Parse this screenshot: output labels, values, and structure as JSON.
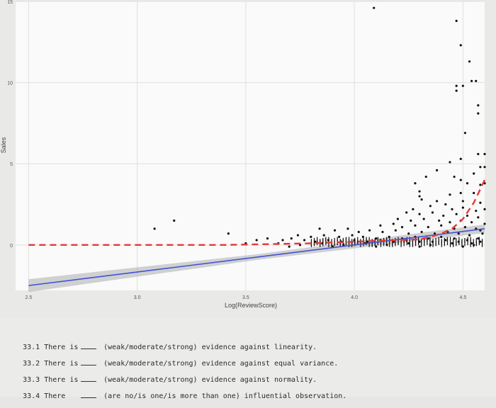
{
  "chart_data": {
    "type": "scatter",
    "title": "",
    "xlabel": "Log(ReviewScore)",
    "ylabel": "Sales",
    "xlim": [
      2.44,
      4.6
    ],
    "ylim": [
      -2.8,
      15
    ],
    "xticks": [
      2.5,
      3.0,
      3.5,
      4.0,
      4.5
    ],
    "xtick_labels": [
      "2.5",
      "3.0",
      "3.5",
      "4.0",
      "4.5"
    ],
    "yticks": [
      0,
      5,
      10,
      15
    ],
    "ytick_labels": [
      "0",
      "5",
      "10",
      "15"
    ],
    "grid": true,
    "points": [
      [
        4.09,
        14.6
      ],
      [
        4.47,
        13.8
      ],
      [
        4.49,
        12.3
      ],
      [
        4.53,
        11.3
      ],
      [
        4.54,
        10.1
      ],
      [
        4.56,
        10.1
      ],
      [
        4.47,
        9.8
      ],
      [
        4.47,
        9.5
      ],
      [
        4.5,
        9.8
      ],
      [
        4.57,
        8.6
      ],
      [
        4.57,
        8.1
      ],
      [
        4.51,
        6.9
      ],
      [
        4.57,
        5.6
      ],
      [
        4.6,
        5.6
      ],
      [
        4.49,
        5.3
      ],
      [
        4.44,
        5.1
      ],
      [
        4.38,
        4.6
      ],
      [
        4.58,
        4.8
      ],
      [
        4.6,
        4.8
      ],
      [
        4.55,
        4.4
      ],
      [
        4.46,
        4.2
      ],
      [
        4.49,
        4.0
      ],
      [
        4.52,
        3.8
      ],
      [
        4.58,
        3.7
      ],
      [
        4.6,
        3.8
      ],
      [
        4.33,
        4.2
      ],
      [
        4.28,
        3.8
      ],
      [
        4.3,
        3.3
      ],
      [
        4.3,
        3.0
      ],
      [
        4.31,
        2.8
      ],
      [
        4.44,
        3.1
      ],
      [
        4.49,
        3.2
      ],
      [
        4.55,
        3.2
      ],
      [
        4.38,
        2.7
      ],
      [
        4.42,
        2.5
      ],
      [
        4.5,
        2.7
      ],
      [
        4.58,
        2.6
      ],
      [
        4.27,
        2.2
      ],
      [
        4.35,
        2.4
      ],
      [
        4.45,
        2.2
      ],
      [
        4.5,
        2.3
      ],
      [
        4.56,
        2.1
      ],
      [
        4.6,
        2.2
      ],
      [
        4.24,
        2.0
      ],
      [
        4.3,
        1.9
      ],
      [
        4.36,
        2.0
      ],
      [
        4.41,
        1.8
      ],
      [
        4.47,
        1.9
      ],
      [
        4.52,
        1.8
      ],
      [
        4.57,
        1.7
      ],
      [
        4.2,
        1.6
      ],
      [
        4.26,
        1.5
      ],
      [
        4.32,
        1.6
      ],
      [
        4.39,
        1.5
      ],
      [
        4.44,
        1.4
      ],
      [
        4.49,
        1.5
      ],
      [
        4.54,
        1.4
      ],
      [
        4.6,
        1.3
      ],
      [
        4.12,
        1.2
      ],
      [
        4.18,
        1.3
      ],
      [
        4.22,
        1.1
      ],
      [
        4.28,
        1.2
      ],
      [
        4.34,
        1.1
      ],
      [
        4.4,
        1.2
      ],
      [
        4.46,
        1.0
      ],
      [
        4.51,
        1.1
      ],
      [
        4.56,
        1.0
      ],
      [
        4.58,
        0.9
      ],
      [
        3.84,
        1.0
      ],
      [
        3.91,
        0.9
      ],
      [
        3.97,
        1.0
      ],
      [
        4.02,
        0.8
      ],
      [
        4.07,
        0.9
      ],
      [
        4.13,
        0.8
      ],
      [
        4.19,
        0.9
      ],
      [
        4.25,
        0.7
      ],
      [
        4.31,
        0.8
      ],
      [
        4.37,
        0.7
      ],
      [
        4.43,
        0.8
      ],
      [
        4.48,
        0.7
      ],
      [
        4.53,
        0.6
      ],
      [
        4.59,
        0.7
      ],
      [
        3.74,
        0.6
      ],
      [
        3.8,
        0.5
      ],
      [
        3.86,
        0.6
      ],
      [
        3.93,
        0.5
      ],
      [
        3.99,
        0.6
      ],
      [
        4.04,
        0.5
      ],
      [
        4.1,
        0.4
      ],
      [
        4.16,
        0.5
      ],
      [
        4.22,
        0.4
      ],
      [
        4.28,
        0.5
      ],
      [
        4.34,
        0.4
      ],
      [
        4.4,
        0.5
      ],
      [
        4.46,
        0.4
      ],
      [
        4.52,
        0.3
      ],
      [
        4.57,
        0.4
      ],
      [
        3.08,
        1.0
      ],
      [
        3.17,
        1.5
      ],
      [
        3.42,
        0.7
      ],
      [
        3.55,
        0.3
      ],
      [
        3.6,
        0.4
      ],
      [
        3.67,
        0.3
      ],
      [
        3.71,
        0.4
      ],
      [
        3.77,
        0.3
      ],
      [
        3.82,
        0.2
      ],
      [
        3.88,
        0.3
      ],
      [
        3.94,
        0.2
      ],
      [
        4.0,
        0.3
      ],
      [
        4.06,
        0.2
      ],
      [
        4.12,
        0.3
      ],
      [
        4.18,
        0.2
      ],
      [
        4.24,
        0.3
      ],
      [
        4.3,
        0.2
      ],
      [
        4.36,
        0.2
      ],
      [
        4.42,
        0.3
      ],
      [
        4.48,
        0.2
      ],
      [
        4.54,
        0.1
      ],
      [
        4.58,
        0.2
      ],
      [
        3.5,
        0.1
      ],
      [
        3.65,
        0.1
      ],
      [
        3.75,
        0.0
      ],
      [
        3.85,
        0.1
      ],
      [
        3.95,
        0.0
      ],
      [
        4.05,
        0.1
      ],
      [
        4.15,
        0.0
      ],
      [
        4.25,
        0.1
      ],
      [
        4.35,
        0.0
      ],
      [
        4.45,
        0.1
      ],
      [
        4.55,
        0.0
      ],
      [
        3.7,
        -0.1
      ],
      [
        3.9,
        -0.1
      ],
      [
        4.1,
        -0.1
      ],
      [
        4.3,
        -0.1
      ],
      [
        4.5,
        -0.1
      ]
    ],
    "series": [
      {
        "type": "loess",
        "color": "#e53935",
        "style": "dashed",
        "x": [
          2.5,
          2.8,
          3.0,
          3.2,
          3.4,
          3.6,
          3.8,
          4.0,
          4.1,
          4.2,
          4.3,
          4.35,
          4.4,
          4.45,
          4.5,
          4.55,
          4.6
        ],
        "y": [
          0,
          0,
          0,
          0,
          0,
          0.05,
          0.1,
          0.2,
          0.25,
          0.3,
          0.35,
          0.5,
          0.7,
          1.0,
          1.6,
          2.6,
          4.0
        ]
      },
      {
        "type": "linear-fit",
        "color": "#3f51d8",
        "style": "solid",
        "x": [
          2.5,
          4.6
        ],
        "y": [
          -2.5,
          1.0
        ],
        "band_color": "#9e9e9e"
      }
    ]
  },
  "questions": [
    {
      "number": "33.1",
      "prefix": "There is",
      "text": "(weak/moderate/strong) evidence against linearity."
    },
    {
      "number": "33.2",
      "prefix": "There is",
      "text": "(weak/moderate/strong) evidence against equal variance."
    },
    {
      "number": "33.3",
      "prefix": "There is",
      "text": "(weak/moderate/strong) evidence against normality."
    },
    {
      "number": "33.4",
      "prefix": "There",
      "text": "(are no/is one/is more than one) influential observation."
    }
  ]
}
